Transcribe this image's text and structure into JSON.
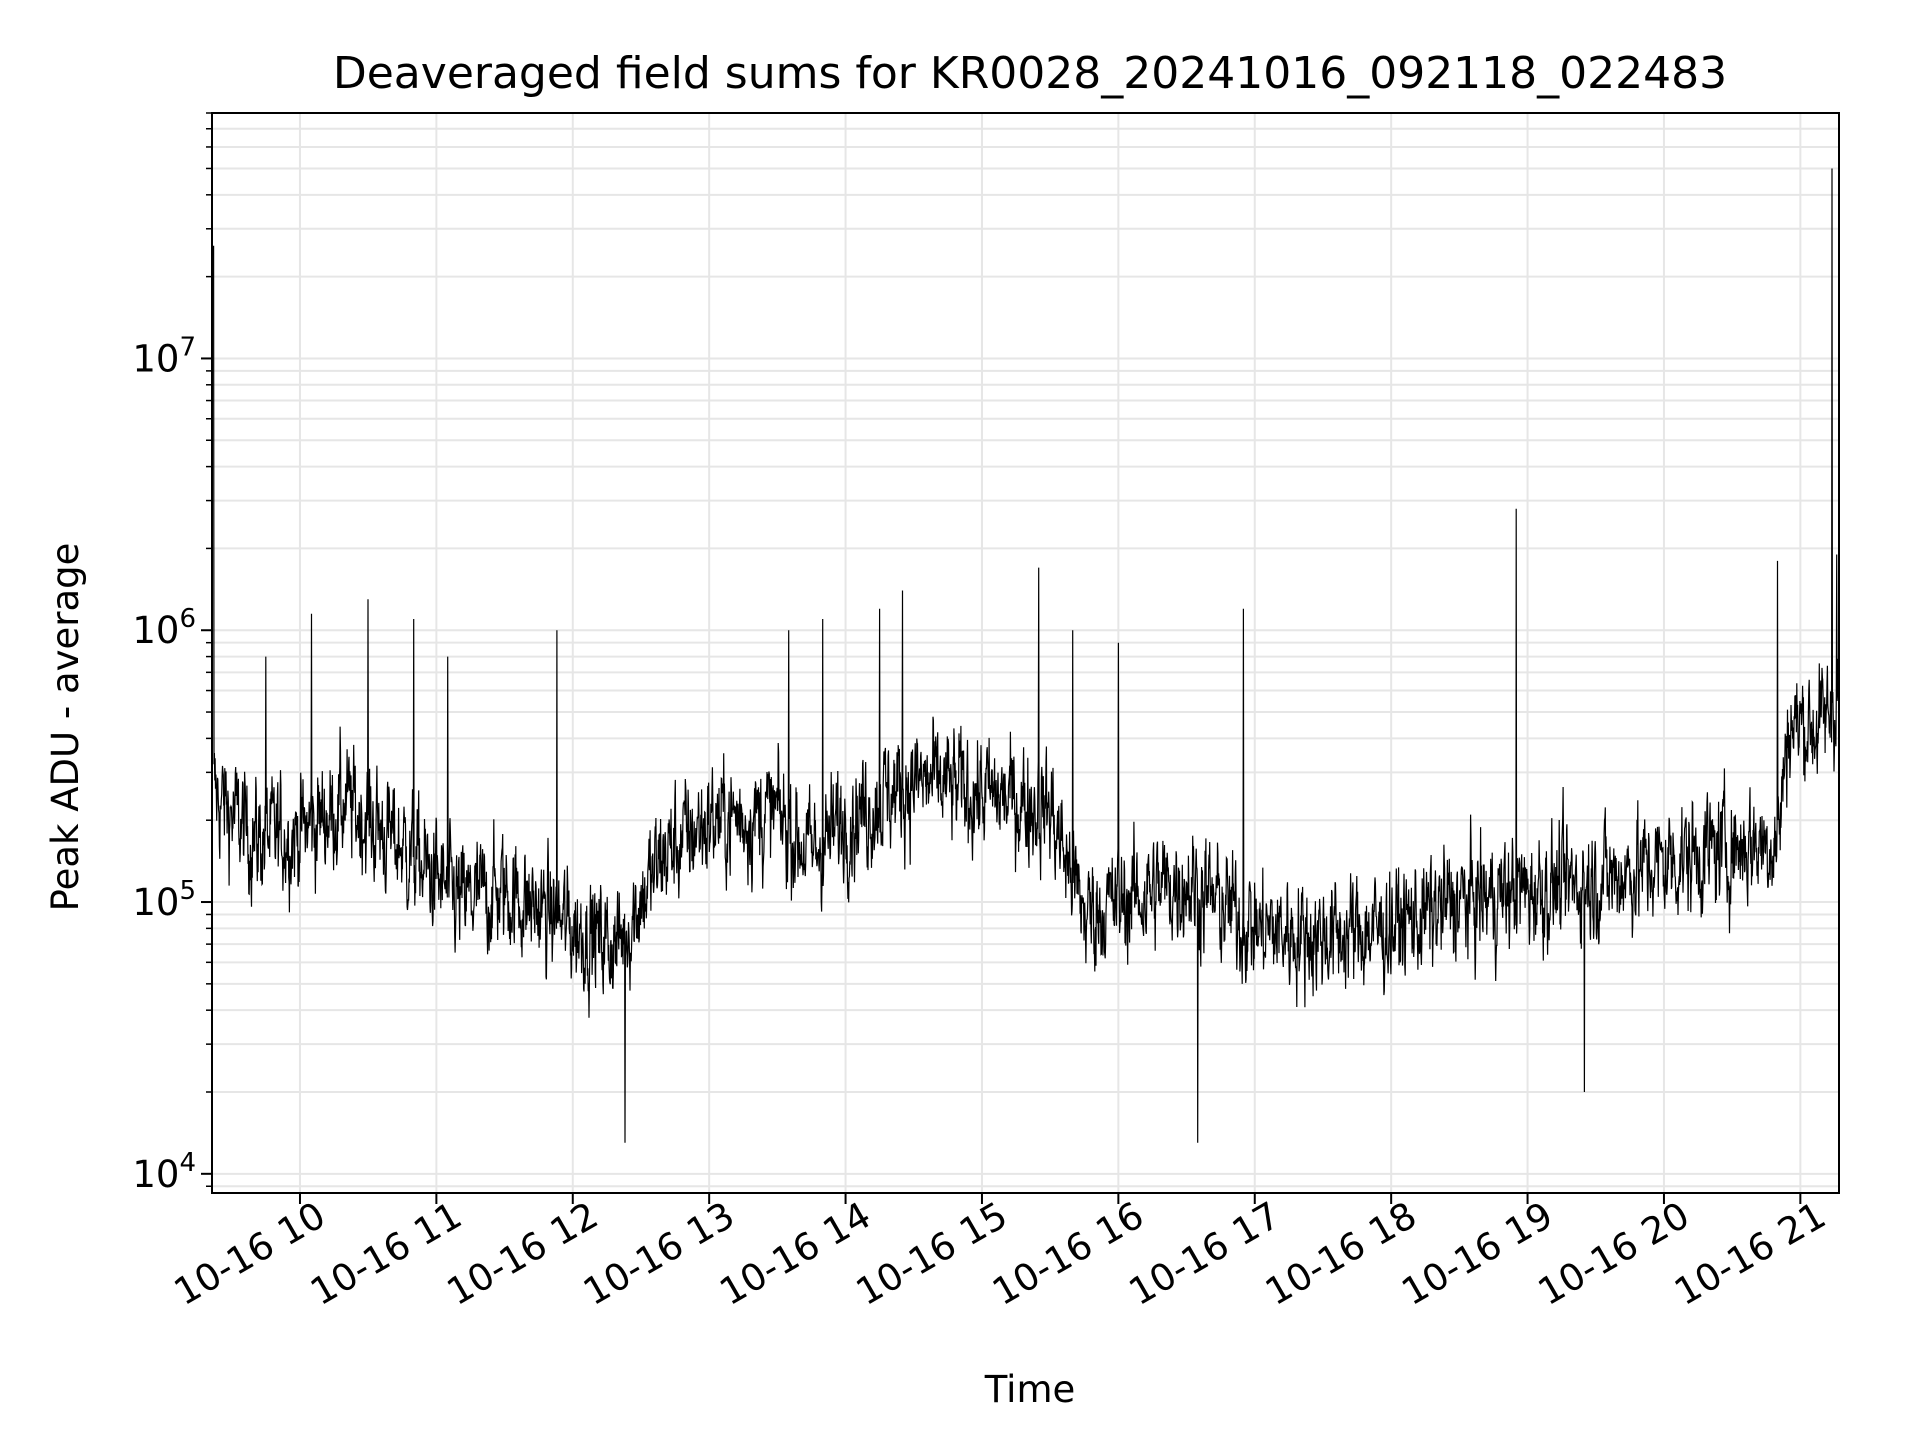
{
  "chart_data": {
    "type": "line",
    "title": "Deaveraged field sums for KR0028_20241016_092118_022483",
    "xlabel": "Time",
    "ylabel": "Peak ADU - average",
    "yscale": "log",
    "ylim": [
      8500,
      80000000
    ],
    "xlim": [
      "2024-10-16 09:21:18",
      "2024-10-16 21:17:00"
    ],
    "grid": true,
    "line_color": "#000000",
    "grid_color": "#e6e6e6",
    "y_ticks": [
      {
        "value": 10000,
        "base": "10",
        "exp": "4"
      },
      {
        "value": 100000,
        "base": "10",
        "exp": "5"
      },
      {
        "value": 1000000,
        "base": "10",
        "exp": "6"
      },
      {
        "value": 10000000,
        "base": "10",
        "exp": "7"
      }
    ],
    "x_ticks": [
      {
        "value": "2024-10-16 10:00",
        "label": "10-16 10"
      },
      {
        "value": "2024-10-16 11:00",
        "label": "10-16 11"
      },
      {
        "value": "2024-10-16 12:00",
        "label": "10-16 12"
      },
      {
        "value": "2024-10-16 13:00",
        "label": "10-16 13"
      },
      {
        "value": "2024-10-16 14:00",
        "label": "10-16 14"
      },
      {
        "value": "2024-10-16 15:00",
        "label": "10-16 15"
      },
      {
        "value": "2024-10-16 16:00",
        "label": "10-16 16"
      },
      {
        "value": "2024-10-16 17:00",
        "label": "10-16 17"
      },
      {
        "value": "2024-10-16 18:00",
        "label": "10-16 18"
      },
      {
        "value": "2024-10-16 19:00",
        "label": "10-16 19"
      },
      {
        "value": "2024-10-16 20:00",
        "label": "10-16 20"
      },
      {
        "value": "2024-10-16 21:00",
        "label": "10-16 21"
      }
    ],
    "series": [
      {
        "noise_band": true,
        "baseline": [
          {
            "x": "2024-10-16 09:22",
            "y": 250000
          },
          {
            "x": "2024-10-16 09:40",
            "y": 170000
          },
          {
            "x": "2024-10-16 10:00",
            "y": 180000
          },
          {
            "x": "2024-10-16 10:20",
            "y": 230000
          },
          {
            "x": "2024-10-16 10:45",
            "y": 160000
          },
          {
            "x": "2024-10-16 11:10",
            "y": 100000
          },
          {
            "x": "2024-10-16 11:30",
            "y": 110000
          },
          {
            "x": "2024-10-16 12:00",
            "y": 80000
          },
          {
            "x": "2024-10-16 12:20",
            "y": 70000
          },
          {
            "x": "2024-10-16 12:40",
            "y": 150000
          },
          {
            "x": "2024-10-16 13:00",
            "y": 200000
          },
          {
            "x": "2024-10-16 13:30",
            "y": 210000
          },
          {
            "x": "2024-10-16 13:45",
            "y": 150000
          },
          {
            "x": "2024-10-16 14:00",
            "y": 200000
          },
          {
            "x": "2024-10-16 14:30",
            "y": 280000
          },
          {
            "x": "2024-10-16 15:00",
            "y": 250000
          },
          {
            "x": "2024-10-16 15:30",
            "y": 220000
          },
          {
            "x": "2024-10-16 15:45",
            "y": 90000
          },
          {
            "x": "2024-10-16 16:00",
            "y": 100000
          },
          {
            "x": "2024-10-16 16:30",
            "y": 120000
          },
          {
            "x": "2024-10-16 17:00",
            "y": 80000
          },
          {
            "x": "2024-10-16 17:30",
            "y": 75000
          },
          {
            "x": "2024-10-16 18:00",
            "y": 80000
          },
          {
            "x": "2024-10-16 18:30",
            "y": 100000
          },
          {
            "x": "2024-10-16 19:00",
            "y": 110000
          },
          {
            "x": "2024-10-16 19:30",
            "y": 120000
          },
          {
            "x": "2024-10-16 20:00",
            "y": 140000
          },
          {
            "x": "2024-10-16 20:30",
            "y": 160000
          },
          {
            "x": "2024-10-16 20:50",
            "y": 170000
          },
          {
            "x": "2024-10-16 20:55",
            "y": 450000
          },
          {
            "x": "2024-10-16 21:10",
            "y": 450000
          },
          {
            "x": "2024-10-16 21:17",
            "y": 600000
          }
        ],
        "spikes": [
          {
            "x": "2024-10-16 09:22",
            "y": 26000000
          },
          {
            "x": "2024-10-16 09:45",
            "y": 800000
          },
          {
            "x": "2024-10-16 10:05",
            "y": 1150000
          },
          {
            "x": "2024-10-16 10:30",
            "y": 1300000
          },
          {
            "x": "2024-10-16 10:50",
            "y": 1100000
          },
          {
            "x": "2024-10-16 11:05",
            "y": 800000
          },
          {
            "x": "2024-10-16 11:53",
            "y": 1000000
          },
          {
            "x": "2024-10-16 12:23",
            "y": 13000
          },
          {
            "x": "2024-10-16 13:35",
            "y": 1000000
          },
          {
            "x": "2024-10-16 13:50",
            "y": 1100000
          },
          {
            "x": "2024-10-16 14:15",
            "y": 1200000
          },
          {
            "x": "2024-10-16 14:25",
            "y": 1400000
          },
          {
            "x": "2024-10-16 15:25",
            "y": 1700000
          },
          {
            "x": "2024-10-16 15:40",
            "y": 1000000
          },
          {
            "x": "2024-10-16 16:00",
            "y": 900000
          },
          {
            "x": "2024-10-16 16:35",
            "y": 13000
          },
          {
            "x": "2024-10-16 16:55",
            "y": 1200000
          },
          {
            "x": "2024-10-16 18:55",
            "y": 2800000
          },
          {
            "x": "2024-10-16 19:25",
            "y": 20000
          },
          {
            "x": "2024-10-16 20:50",
            "y": 1800000
          },
          {
            "x": "2024-10-16 21:14",
            "y": 50000000
          },
          {
            "x": "2024-10-16 21:16",
            "y": 1900000
          }
        ]
      }
    ]
  }
}
